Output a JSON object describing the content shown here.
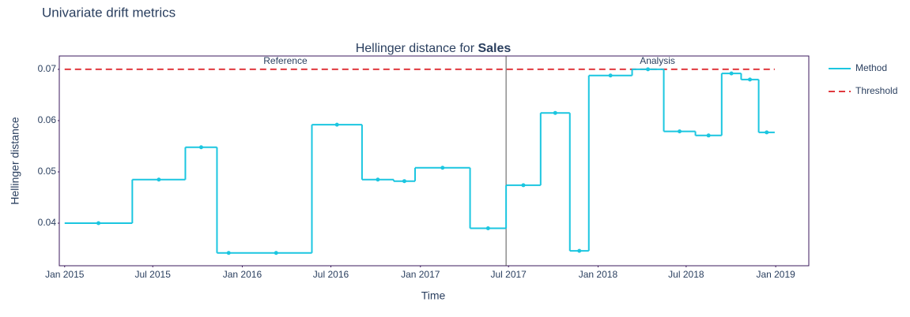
{
  "chart_data": {
    "type": "step",
    "title": "Univariate drift metrics",
    "subtitle": "Hellinger distance for",
    "subtitle_bold": "Sales",
    "x_label": "Time",
    "y_label": "Hellinger distance",
    "x_edges": [
      "2015-01-01",
      "2015-05-20",
      "2015-09-06",
      "2015-11-10",
      "2015-12-28",
      "2016-05-23",
      "2016-09-03",
      "2016-11-07",
      "2016-12-21",
      "2017-04-13",
      "2017-06-26",
      "2017-09-05",
      "2017-11-04",
      "2017-12-13",
      "2018-03-12",
      "2018-05-16",
      "2018-07-20",
      "2018-09-12",
      "2018-10-22",
      "2018-11-27",
      "2018-12-30"
    ],
    "series": [
      {
        "name": "Method",
        "color": "#1bc6e0",
        "values": [
          0.04,
          0.0485,
          0.0548,
          0.0342,
          0.0342,
          0.0592,
          0.0485,
          0.0482,
          0.0508,
          0.039,
          0.0474,
          0.0615,
          0.0346,
          0.0688,
          0.07,
          0.0579,
          0.0571,
          0.0692,
          0.068,
          0.0577
        ]
      }
    ],
    "threshold": {
      "name": "Threshold",
      "value": 0.07,
      "color": "#e0393e"
    },
    "periods": [
      {
        "label": "Reference",
        "start": "2015-01-01",
        "end": "2017-06-26"
      },
      {
        "label": "Analysis",
        "start": "2017-06-26",
        "end": "2019-03-10"
      }
    ],
    "xlim": [
      "2014-12-21",
      "2019-03-10"
    ],
    "ylim": [
      0.0317,
      0.0726
    ],
    "xticks": [
      {
        "value": "2015-01-01",
        "label": "Jan 2015"
      },
      {
        "value": "2015-07-01",
        "label": "Jul 2015"
      },
      {
        "value": "2016-01-01",
        "label": "Jan 2016"
      },
      {
        "value": "2016-07-01",
        "label": "Jul 2016"
      },
      {
        "value": "2017-01-01",
        "label": "Jan 2017"
      },
      {
        "value": "2017-07-01",
        "label": "Jul 2017"
      },
      {
        "value": "2018-01-01",
        "label": "Jan 2018"
      },
      {
        "value": "2018-07-01",
        "label": "Jul 2018"
      },
      {
        "value": "2019-01-01",
        "label": "Jan 2019"
      }
    ],
    "yticks": [
      0.04,
      0.05,
      0.06,
      0.07
    ],
    "grid": false,
    "legend": "right"
  }
}
